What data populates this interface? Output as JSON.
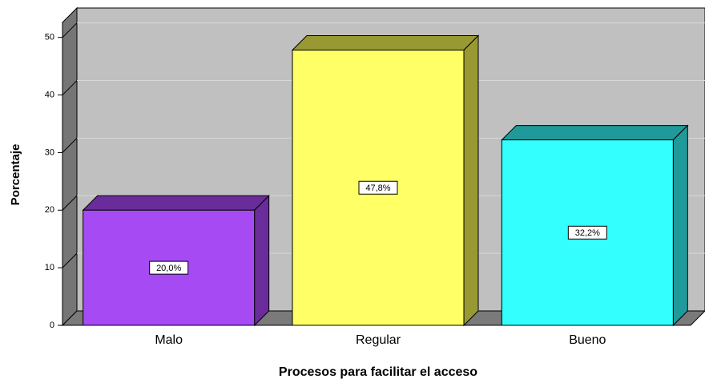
{
  "chart_data": {
    "type": "bar3d",
    "x_label": "Procesos para facilitar el acceso",
    "y_label": "Porcentaje",
    "categories": [
      "Malo",
      "Regular",
      "Bueno"
    ],
    "values": [
      20.0,
      47.8,
      32.2
    ],
    "value_labels": [
      "20,0%",
      "47,8%",
      "32,2%"
    ],
    "colors": [
      "#a64af4",
      "#ffff66",
      "#33ffff"
    ],
    "side_colors": [
      "#6a2c9a",
      "#999933",
      "#1f9999"
    ],
    "ylim": [
      0,
      52.6
    ],
    "yticks": [
      0,
      10,
      20,
      30,
      40,
      50
    ],
    "grid": true
  }
}
